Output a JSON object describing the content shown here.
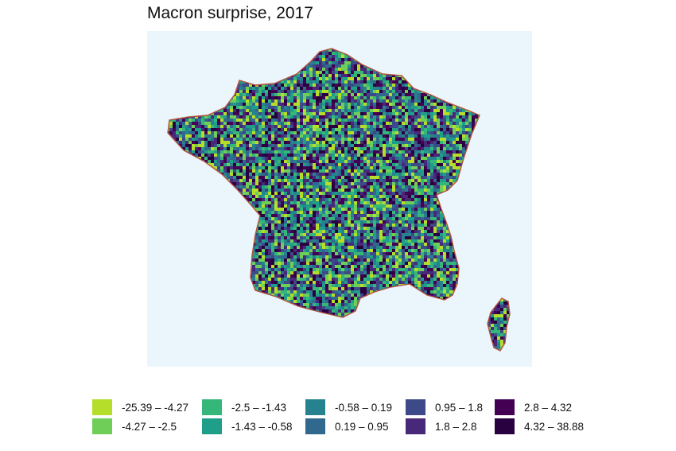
{
  "title": "Macron surprise, 2017",
  "colors": {
    "panel_background": "#eaf5fc",
    "border": "#b5513f"
  },
  "legend": {
    "items": [
      {
        "label": "-25.39 – -4.27",
        "color": "#b5de2b"
      },
      {
        "label": "-4.27 – -2.5",
        "color": "#6ece58"
      },
      {
        "label": "-2.5 – -1.43",
        "color": "#35b779"
      },
      {
        "label": "-1.43 – -0.58",
        "color": "#1f9e89"
      },
      {
        "label": "-0.58 – 0.19",
        "color": "#26828e"
      },
      {
        "label": "0.19 – 0.95",
        "color": "#31688e"
      },
      {
        "label": "0.95 – 1.8",
        "color": "#3e4989"
      },
      {
        "label": "1.8 – 2.8",
        "color": "#482878"
      },
      {
        "label": "2.8 – 4.32",
        "color": "#440154"
      },
      {
        "label": "4.32 – 38.88",
        "color": "#2a0140"
      }
    ]
  }
}
